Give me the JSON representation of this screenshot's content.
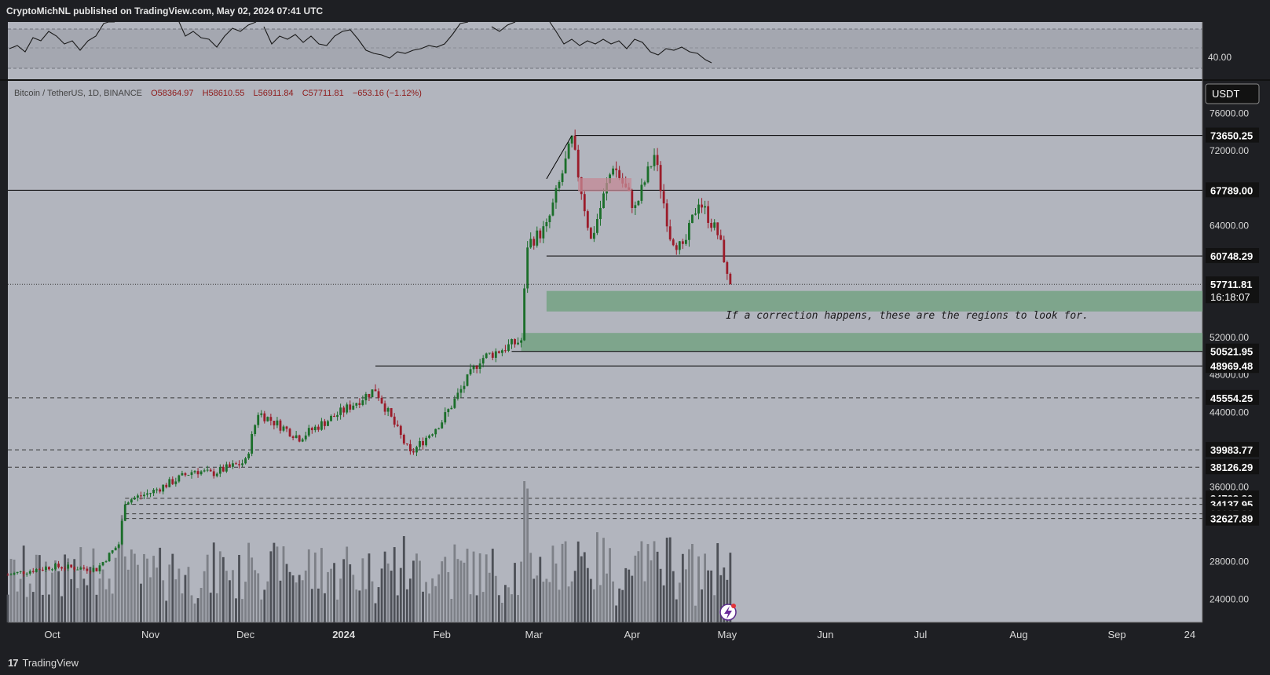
{
  "header": {
    "publish_line": "CryptoMichNL published on TradingView.com, May 02, 2024 07:41 UTC"
  },
  "footer": {
    "logo_mark": "17",
    "brand": "TradingView"
  },
  "colors": {
    "page_bg": "#1e1f23",
    "pane_bg": "#b2b5be",
    "up": "#1b6e2a",
    "down": "#9b1c2a",
    "zone": "#7ea58c",
    "label_bg": "#121212",
    "ohlc_value": "#8e1a1a"
  },
  "chart_data": {
    "type": "candlestick",
    "symbol_line": {
      "prefix": "Bitcoin / TetherUS, 1D, BINANCE",
      "o": "O58364.97",
      "h": "H58610.55",
      "l": "L56911.84",
      "c": "C57711.81",
      "change": "−653.16 (−1.12%)"
    },
    "currency": "USDT",
    "y_ticks": [
      "76000.00",
      "72000.00",
      "64000.00",
      "52000.00",
      "48000.00",
      "44000.00",
      "36000.00",
      "28000.00",
      "24000.00"
    ],
    "y_tick_values": [
      76000,
      72000,
      64000,
      52000,
      48000,
      44000,
      36000,
      28000,
      24000
    ],
    "y_range": [
      21500,
      79500
    ],
    "rsi_tick": "40.00",
    "x_ticks": [
      "Oct",
      "Nov",
      "Dec",
      "2024",
      "Feb",
      "Mar",
      "Apr",
      "May",
      "Jun",
      "Jul",
      "Aug",
      "Sep",
      "24"
    ],
    "x_tick_dates": [
      "2023-10-01",
      "2023-11-01",
      "2023-12-01",
      "2024-01-01",
      "2024-02-01",
      "2024-03-01",
      "2024-04-01",
      "2024-05-01",
      "2024-06-01",
      "2024-07-01",
      "2024-08-01",
      "2024-09-01",
      "2024-09-24"
    ],
    "last_price": "57711.81",
    "countdown": "16:18:07",
    "horizontal_levels": [
      {
        "label": "73650.25",
        "value": 73650.25,
        "style": "solid",
        "from": "2024-03-14"
      },
      {
        "label": "67789.00",
        "value": 67789.0,
        "style": "solid",
        "from": "2023-09-17"
      },
      {
        "label": "60748.29",
        "value": 60748.29,
        "style": "solid",
        "from": "2024-03-05"
      },
      {
        "label": "50521.95",
        "value": 50521.95,
        "style": "solid",
        "from": "2024-02-23"
      },
      {
        "label": "48969.48",
        "value": 48969.48,
        "style": "solid",
        "from": "2024-01-11"
      },
      {
        "label": "45554.25",
        "value": 45554.25,
        "style": "dashed",
        "from": "2023-09-17"
      },
      {
        "label": "39983.77",
        "value": 39983.77,
        "style": "dashed",
        "from": "2023-09-17"
      },
      {
        "label": "38126.29",
        "value": 38126.29,
        "style": "dashed",
        "from": "2023-09-17"
      },
      {
        "label": "34793.20",
        "value": 34793.2,
        "style": "dashed",
        "from": "2023-10-24"
      },
      {
        "label": "34137.95",
        "value": 34137.95,
        "style": "dashed",
        "from": "2023-10-24"
      },
      {
        "label": "33127.39",
        "value": 33127.39,
        "style": "dashed",
        "from": "2023-10-24"
      },
      {
        "label": "32627.89",
        "value": 32627.89,
        "style": "dashed",
        "from": "2023-10-24"
      }
    ],
    "zones": [
      {
        "name": "upper-correction-zone",
        "from": "2024-03-05",
        "low": 54800,
        "high": 57000
      },
      {
        "name": "lower-correction-zone",
        "from": "2024-02-26",
        "low": 50521.95,
        "high": 52500
      }
    ],
    "annotation": "If a correction happens, these are the regions to look for.",
    "trend_line": {
      "from_date": "2024-03-05",
      "from_value": 69000,
      "to_date": "2024-03-13",
      "to_value": 73650.25
    },
    "closes": [
      {
        "date": "2023-09-17",
        "close": 26600
      },
      {
        "date": "2023-10-01",
        "close": 27500
      },
      {
        "date": "2023-10-15",
        "close": 27200
      },
      {
        "date": "2023-10-22",
        "close": 29900
      },
      {
        "date": "2023-10-24",
        "close": 34500
      },
      {
        "date": "2023-11-01",
        "close": 35400
      },
      {
        "date": "2023-11-15",
        "close": 37800
      },
      {
        "date": "2023-11-20",
        "close": 37400
      },
      {
        "date": "2023-12-01",
        "close": 38700
      },
      {
        "date": "2023-12-05",
        "close": 44000
      },
      {
        "date": "2023-12-18",
        "close": 41300
      },
      {
        "date": "2024-01-01",
        "close": 44200
      },
      {
        "date": "2024-01-11",
        "close": 46500
      },
      {
        "date": "2024-01-22",
        "close": 39500
      },
      {
        "date": "2024-02-01",
        "close": 43100
      },
      {
        "date": "2024-02-13",
        "close": 49700
      },
      {
        "date": "2024-02-26",
        "close": 51700
      },
      {
        "date": "2024-02-28",
        "close": 62000
      },
      {
        "date": "2024-03-05",
        "close": 63800
      },
      {
        "date": "2024-03-13",
        "close": 73100
      },
      {
        "date": "2024-03-19",
        "close": 62400
      },
      {
        "date": "2024-03-26",
        "close": 70600
      },
      {
        "date": "2024-04-02",
        "close": 65800
      },
      {
        "date": "2024-04-08",
        "close": 71600
      },
      {
        "date": "2024-04-13",
        "close": 63000
      },
      {
        "date": "2024-04-17",
        "close": 61300
      },
      {
        "date": "2024-04-22",
        "close": 66800
      },
      {
        "date": "2024-04-28",
        "close": 63100
      },
      {
        "date": "2024-04-30",
        "close": 60600
      },
      {
        "date": "2024-05-01",
        "close": 58364.97
      },
      {
        "date": "2024-05-02",
        "close": 57711.81
      }
    ]
  }
}
